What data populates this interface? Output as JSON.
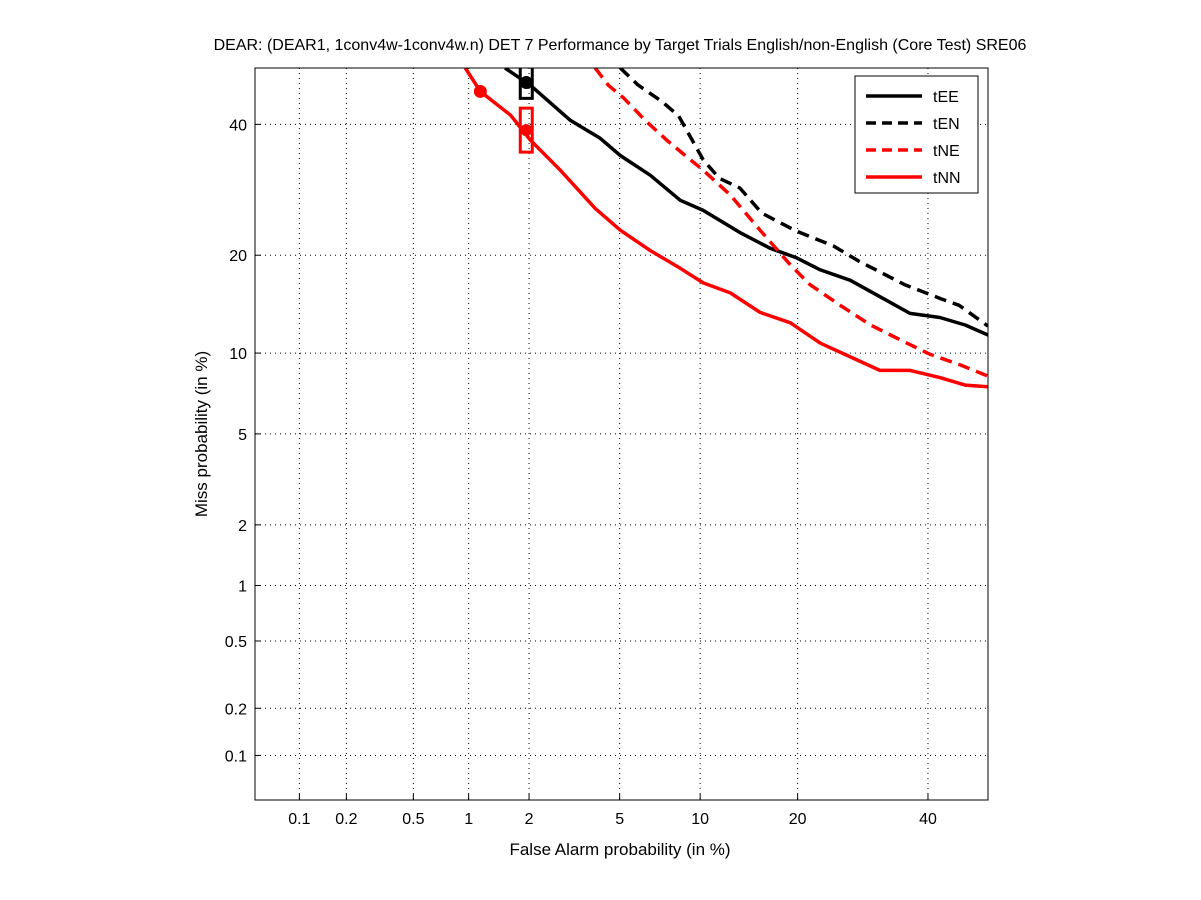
{
  "chart_data": {
    "type": "line",
    "title": "DEAR: (DEAR1, 1conv4w-1conv4w.n) DET 7 Performance by Target Trials English/non-English (Core Test) SRE06",
    "xlabel": "False Alarm probability (in %)",
    "ylabel": "Miss probability (in %)",
    "x_scale": "normal-deviate",
    "y_scale": "normal-deviate",
    "xlim": [
      0.05,
      50.7
    ],
    "ylim": [
      0.05,
      50
    ],
    "grid": true,
    "legend_placement": "top-right",
    "x_ticks": [
      0.1,
      0.2,
      0.5,
      1,
      2,
      5,
      10,
      20,
      40
    ],
    "x_tick_labels": [
      "0.1",
      "0.2",
      "0.5",
      "1",
      "2",
      "5",
      "10",
      "20",
      "40"
    ],
    "y_ticks": [
      0.1,
      0.2,
      0.5,
      1,
      2,
      5,
      10,
      20,
      40
    ],
    "y_tick_labels": [
      "0.1",
      "0.2",
      "0.5",
      "1",
      "2",
      "5",
      "10",
      "20",
      "40"
    ],
    "series": [
      {
        "name": "tEE",
        "color": "#000000",
        "style": "solid",
        "x": [
          1.53,
          2.03,
          3.09,
          4.16,
          5.03,
          6.59,
          8.52,
          10.24,
          13.5,
          16.7,
          19.8,
          23.0,
          27.3,
          31.9,
          36.9,
          42.1,
          46.6,
          50.7
        ],
        "y": [
          50,
          46.9,
          40.7,
          37.6,
          34.7,
          31.5,
          27.6,
          26.1,
          23.0,
          20.9,
          19.7,
          18.2,
          17.0,
          15.2,
          13.5,
          13.1,
          12.4,
          11.5
        ],
        "marker_circle": [
          1.94,
          47.4
        ],
        "marker_box": [
          1.94,
          48.5
        ]
      },
      {
        "name": "tEN",
        "color": "#000000",
        "style": "dashed",
        "x": [
          5.03,
          5.9,
          7.3,
          8.4,
          10.24,
          11.6,
          13.5,
          15.8,
          19.8,
          24.8,
          28.5,
          36.0,
          42.2,
          45.5,
          50.7
        ],
        "y": [
          50,
          47,
          44,
          41.5,
          34,
          31,
          29.5,
          25.7,
          23.2,
          21.2,
          19.3,
          16.5,
          15.0,
          14.3,
          12.3
        ]
      },
      {
        "name": "tNE",
        "color": "#ff0000",
        "style": "dashed",
        "x": [
          3.96,
          4.5,
          5.2,
          6.3,
          7.6,
          8.87,
          10.24,
          12.6,
          15.6,
          19.1,
          21.6,
          25.8,
          30.4,
          35.2,
          40.4,
          45.7,
          50.7
        ],
        "y": [
          50,
          46.9,
          44.6,
          40.7,
          37.3,
          34.7,
          32.3,
          28.4,
          23.3,
          18.8,
          16.5,
          14.3,
          12.4,
          11.1,
          9.9,
          9.1,
          8.3
        ]
      },
      {
        "name": "tNN",
        "color": "#ff0000",
        "style": "solid",
        "x": [
          0.96,
          1.15,
          1.63,
          2.03,
          2.79,
          3.96,
          5.03,
          6.59,
          8.52,
          10.24,
          12.6,
          15.6,
          19.1,
          23.0,
          27.3,
          31.9,
          36.9,
          42.1,
          46.6,
          50.7
        ],
        "y": [
          50,
          45.8,
          41.6,
          37.3,
          32.3,
          26.4,
          23.3,
          20.6,
          18.4,
          16.7,
          15.6,
          13.6,
          12.6,
          10.8,
          9.7,
          8.7,
          8.7,
          8.2,
          7.7,
          7.6
        ],
        "marker_circle": [
          1.15,
          45.8
        ],
        "marker_box": [
          1.94,
          39.0
        ],
        "marker_dot": [
          1.94,
          39.0
        ]
      }
    ]
  }
}
